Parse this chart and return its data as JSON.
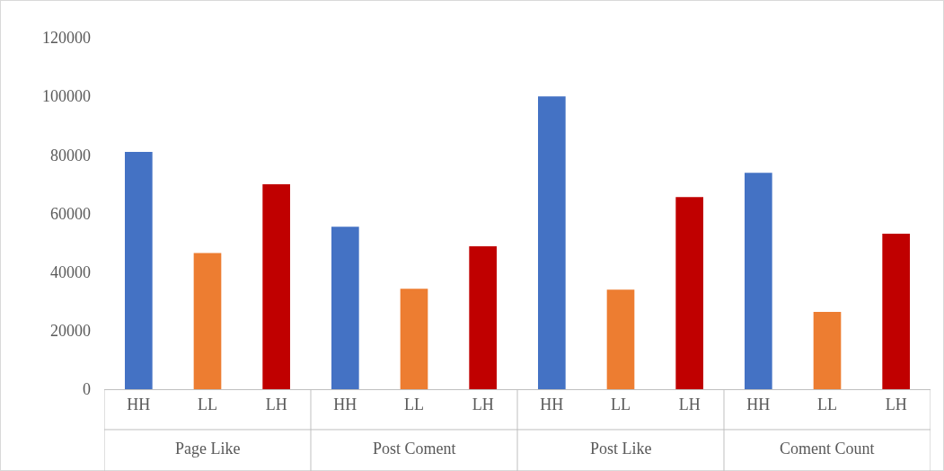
{
  "chart_data": {
    "type": "bar",
    "categories": [
      "HH",
      "LL",
      "LH",
      "HH",
      "LL",
      "LH",
      "HH",
      "LL",
      "LH",
      "HH",
      "LL",
      "LH"
    ],
    "values": [
      81000,
      46500,
      70000,
      55500,
      34300,
      48800,
      100000,
      34000,
      65600,
      73900,
      26400,
      53100
    ],
    "colors": [
      "#4472c4",
      "#ed7d31",
      "#c00000",
      "#4472c4",
      "#ed7d31",
      "#c00000",
      "#4472c4",
      "#ed7d31",
      "#c00000",
      "#4472c4",
      "#ed7d31",
      "#c00000"
    ],
    "annotations": [
      "Page Like",
      "Post Coment",
      "Post Like",
      "Coment Count"
    ],
    "ylim": [
      0,
      120000
    ],
    "yticks": [
      0,
      20000,
      40000,
      60000,
      80000,
      100000,
      120000
    ],
    "grid": false,
    "legend": false
  }
}
